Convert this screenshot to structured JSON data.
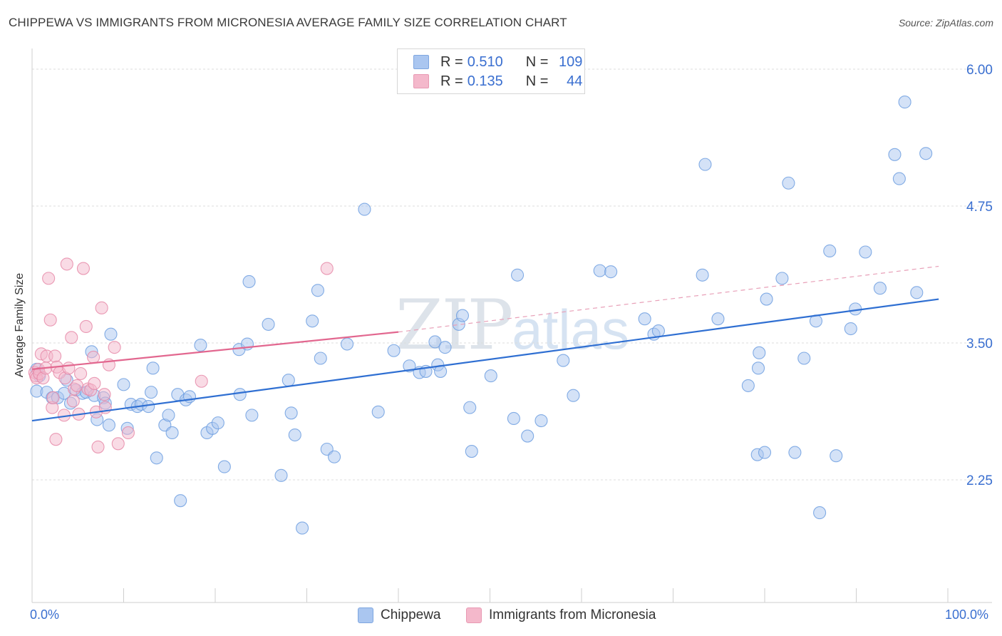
{
  "header": {
    "title": "CHIPPEWA VS IMMIGRANTS FROM MICRONESIA AVERAGE FAMILY SIZE CORRELATION CHART",
    "source": "Source: ZipAtlas.com"
  },
  "watermark": {
    "zip": "ZIP",
    "atlas": "atlas"
  },
  "legend": {
    "rows": [
      {
        "r_label": "R =",
        "r_value": "0.510",
        "n_label": "N =",
        "n_value": "109",
        "color": "#aac6f0"
      },
      {
        "r_label": "R =",
        "r_value": "0.135",
        "n_label": "N =",
        "n_value": "44",
        "color": "#f4b8cb"
      }
    ]
  },
  "bottom_legend": [
    {
      "label": "Chippewa",
      "color": "#aac6f0"
    },
    {
      "label": "Immigrants from Micronesia",
      "color": "#f4b8cb"
    }
  ],
  "chart_data": {
    "type": "scatter",
    "title": "CHIPPEWA VS IMMIGRANTS FROM MICRONESIA AVERAGE FAMILY SIZE CORRELATION CHART",
    "xlabel": "",
    "ylabel": "Average Family Size",
    "x_tick_labels": [
      "0.0%",
      "100.0%"
    ],
    "y_ticks": [
      2.25,
      3.5,
      4.75,
      6.0
    ],
    "y_tick_labels": [
      "2.25",
      "3.50",
      "4.75",
      "6.00"
    ],
    "xlim": [
      0,
      100
    ],
    "ylim": [
      1.2,
      6.3
    ],
    "grid": "horizontal dashed",
    "legend_position": "top-center",
    "series": [
      {
        "name": "Chippewa",
        "color": "#6f9fe0",
        "fill": "#aac6f0",
        "trend": {
          "x": [
            0,
            99
          ],
          "y": [
            2.79,
            3.9
          ]
        },
        "points": [
          [
            0.5,
            3.26
          ],
          [
            0.8,
            3.2
          ],
          [
            0.5,
            3.06
          ],
          [
            1.6,
            3.05
          ],
          [
            2.2,
            3.0
          ],
          [
            2.8,
            3.0
          ],
          [
            3.8,
            3.16
          ],
          [
            3.5,
            3.04
          ],
          [
            4.2,
            2.95
          ],
          [
            4.8,
            3.07
          ],
          [
            5.5,
            3.04
          ],
          [
            5.9,
            3.05
          ],
          [
            6.5,
            3.42
          ],
          [
            6.8,
            3.02
          ],
          [
            7.1,
            2.8
          ],
          [
            7.8,
            3.0
          ],
          [
            8.0,
            2.95
          ],
          [
            8.4,
            2.75
          ],
          [
            8.6,
            3.58
          ],
          [
            10.0,
            3.12
          ],
          [
            10.4,
            2.72
          ],
          [
            10.8,
            2.94
          ],
          [
            11.5,
            2.92
          ],
          [
            11.9,
            2.94
          ],
          [
            12.7,
            2.92
          ],
          [
            13.0,
            3.05
          ],
          [
            13.2,
            3.27
          ],
          [
            13.6,
            2.45
          ],
          [
            14.5,
            2.75
          ],
          [
            14.9,
            2.84
          ],
          [
            15.3,
            2.68
          ],
          [
            15.9,
            3.03
          ],
          [
            16.2,
            2.06
          ],
          [
            16.8,
            2.98
          ],
          [
            17.2,
            3.01
          ],
          [
            18.4,
            3.48
          ],
          [
            19.1,
            2.68
          ],
          [
            19.7,
            2.72
          ],
          [
            20.3,
            2.77
          ],
          [
            21.0,
            2.37
          ],
          [
            22.7,
            3.03
          ],
          [
            22.6,
            3.44
          ],
          [
            23.5,
            3.49
          ],
          [
            23.7,
            4.06
          ],
          [
            24.0,
            2.84
          ],
          [
            25.8,
            3.67
          ],
          [
            27.2,
            2.29
          ],
          [
            28.0,
            3.16
          ],
          [
            28.3,
            2.86
          ],
          [
            28.7,
            2.66
          ],
          [
            29.5,
            1.81
          ],
          [
            30.6,
            3.7
          ],
          [
            31.2,
            3.98
          ],
          [
            31.5,
            3.36
          ],
          [
            32.2,
            2.53
          ],
          [
            33.0,
            2.46
          ],
          [
            34.4,
            3.49
          ],
          [
            36.3,
            4.72
          ],
          [
            37.8,
            2.87
          ],
          [
            39.5,
            3.43
          ],
          [
            41.2,
            3.29
          ],
          [
            42.3,
            3.23
          ],
          [
            43.0,
            3.24
          ],
          [
            44.0,
            3.51
          ],
          [
            44.3,
            3.3
          ],
          [
            44.6,
            3.24
          ],
          [
            45.1,
            3.46
          ],
          [
            46.6,
            3.67
          ],
          [
            47.0,
            3.75
          ],
          [
            47.8,
            2.91
          ],
          [
            48.0,
            2.51
          ],
          [
            50.1,
            3.2
          ],
          [
            52.6,
            2.81
          ],
          [
            53.0,
            4.12
          ],
          [
            54.1,
            2.65
          ],
          [
            55.6,
            2.79
          ],
          [
            58.0,
            3.34
          ],
          [
            59.1,
            3.02
          ],
          [
            62.0,
            4.16
          ],
          [
            63.2,
            4.15
          ],
          [
            66.9,
            3.72
          ],
          [
            67.9,
            3.58
          ],
          [
            68.4,
            3.61
          ],
          [
            73.5,
            5.13
          ],
          [
            73.2,
            4.12
          ],
          [
            74.9,
            3.72
          ],
          [
            78.2,
            3.11
          ],
          [
            79.3,
            3.27
          ],
          [
            79.4,
            3.41
          ],
          [
            79.2,
            2.48
          ],
          [
            80.0,
            2.5
          ],
          [
            80.2,
            3.9
          ],
          [
            81.9,
            4.09
          ],
          [
            82.6,
            4.96
          ],
          [
            83.3,
            2.5
          ],
          [
            84.3,
            3.36
          ],
          [
            85.6,
            3.7
          ],
          [
            86.0,
            1.95
          ],
          [
            87.1,
            4.34
          ],
          [
            87.8,
            2.47
          ],
          [
            89.4,
            3.63
          ],
          [
            89.9,
            3.81
          ],
          [
            91.0,
            4.33
          ],
          [
            92.6,
            4.0
          ],
          [
            94.2,
            5.22
          ],
          [
            94.7,
            5.0
          ],
          [
            95.3,
            5.7
          ],
          [
            96.6,
            3.96
          ],
          [
            97.6,
            5.23
          ]
        ]
      },
      {
        "name": "Immigrants from Micronesia",
        "color": "#e68aa8",
        "fill": "#f4b8cb",
        "trend": {
          "x": [
            0,
            40
          ],
          "y": [
            3.26,
            3.6
          ],
          "dashed_extension": {
            "x": [
              40,
              99
            ],
            "y": [
              3.6,
              4.2
            ]
          }
        },
        "points": [
          [
            0.3,
            3.23
          ],
          [
            0.4,
            3.2
          ],
          [
            0.5,
            3.18
          ],
          [
            0.7,
            3.26
          ],
          [
            0.8,
            3.22
          ],
          [
            1.0,
            3.4
          ],
          [
            1.2,
            3.18
          ],
          [
            1.5,
            3.27
          ],
          [
            1.6,
            3.38
          ],
          [
            1.8,
            4.09
          ],
          [
            2.0,
            3.71
          ],
          [
            2.2,
            2.91
          ],
          [
            2.3,
            3.0
          ],
          [
            2.5,
            3.38
          ],
          [
            2.6,
            2.62
          ],
          [
            2.7,
            3.28
          ],
          [
            3.0,
            3.23
          ],
          [
            3.5,
            2.84
          ],
          [
            3.6,
            3.18
          ],
          [
            3.8,
            4.22
          ],
          [
            4.0,
            3.27
          ],
          [
            4.3,
            3.55
          ],
          [
            4.5,
            2.97
          ],
          [
            4.6,
            3.08
          ],
          [
            4.9,
            3.11
          ],
          [
            5.1,
            2.85
          ],
          [
            5.3,
            3.22
          ],
          [
            5.6,
            4.18
          ],
          [
            5.9,
            3.65
          ],
          [
            6.1,
            3.08
          ],
          [
            6.4,
            3.07
          ],
          [
            6.7,
            3.37
          ],
          [
            6.8,
            3.13
          ],
          [
            7.0,
            2.87
          ],
          [
            7.2,
            2.55
          ],
          [
            7.6,
            3.82
          ],
          [
            7.9,
            3.03
          ],
          [
            8.0,
            2.91
          ],
          [
            8.4,
            3.3
          ],
          [
            9.0,
            3.46
          ],
          [
            9.4,
            2.58
          ],
          [
            10.5,
            2.68
          ],
          [
            18.5,
            3.15
          ],
          [
            32.2,
            4.18
          ]
        ]
      }
    ]
  }
}
